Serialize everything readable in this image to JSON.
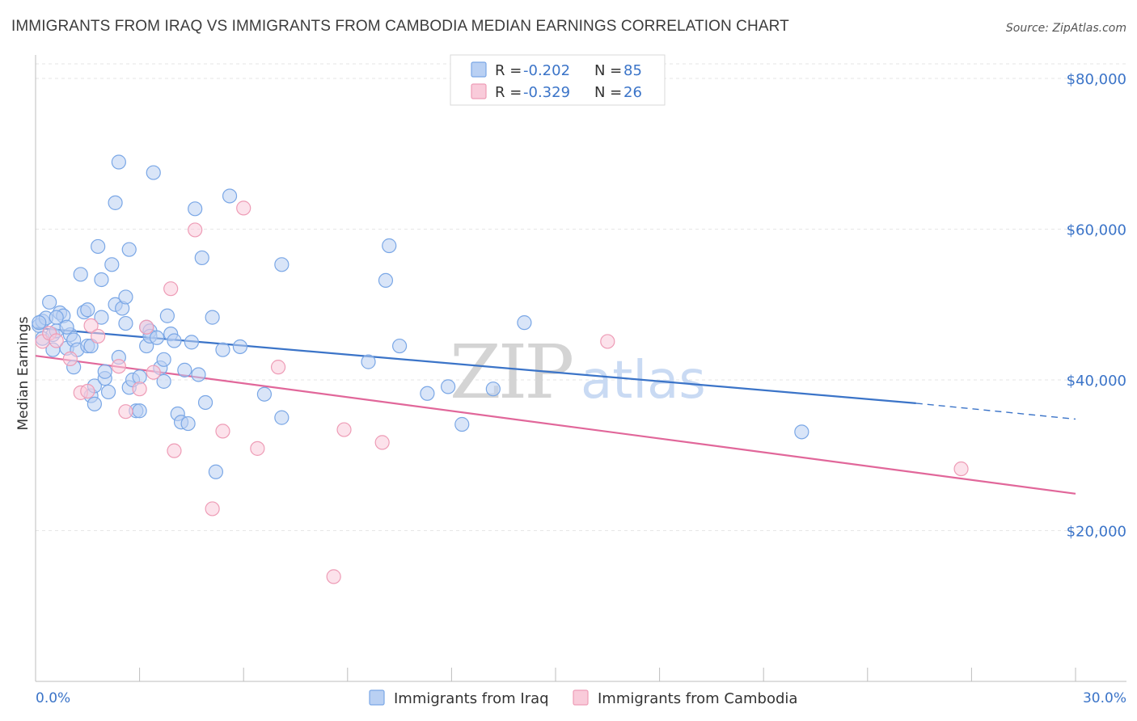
{
  "title": "IMMIGRANTS FROM IRAQ VS IMMIGRANTS FROM CAMBODIA MEDIAN EARNINGS CORRELATION CHART",
  "source": "Source: ZipAtlas.com",
  "watermark": {
    "zip": "ZIP",
    "atlas": "atlas"
  },
  "legend": {
    "r_label": "R = ",
    "n_label": "N = ",
    "rows": [
      {
        "r": "-0.202",
        "n": "85",
        "color": "#7aa7e6",
        "fill": "#b9d0f3"
      },
      {
        "r": "-0.329",
        "n": "26",
        "color": "#ee9cb6",
        "fill": "#f9cbda"
      }
    ]
  },
  "bottom_legend": [
    "Immigrants from Iraq",
    "Immigrants from Cambodia"
  ],
  "chart_data": {
    "type": "scatter",
    "title": "IMMIGRANTS FROM IRAQ VS IMMIGRANTS FROM CAMBODIA MEDIAN EARNINGS CORRELATION CHART",
    "xlabel": "",
    "ylabel": "Median Earnings",
    "xlim": [
      0,
      30
    ],
    "ylim": [
      0,
      82000
    ],
    "x_tick_labels": [
      "0.0%",
      "30.0%"
    ],
    "y_ticks": [
      20000,
      40000,
      60000,
      80000
    ],
    "y_tick_labels": [
      "$20,000",
      "$40,000",
      "$60,000",
      "$80,000"
    ],
    "grid": true,
    "legend_position": "top-center",
    "series": [
      {
        "name": "Immigrants from Iraq",
        "color": "#3b74c8",
        "marker_fill": "#b9d0f3",
        "marker_stroke": "#7aa7e6",
        "trend": {
          "x_start": 0,
          "y_start": 46900,
          "x_end": 25.4,
          "y_end": 36900,
          "dash_to_x": 30,
          "dash_to_y": 34800
        },
        "points": [
          [
            0.1,
            47200
          ],
          [
            0.2,
            47800
          ],
          [
            0.2,
            45500
          ],
          [
            0.3,
            48200
          ],
          [
            0.4,
            50300
          ],
          [
            0.5,
            46000
          ],
          [
            0.5,
            44000
          ],
          [
            0.6,
            46500
          ],
          [
            0.7,
            48900
          ],
          [
            0.8,
            48500
          ],
          [
            0.9,
            44200
          ],
          [
            1.0,
            46000
          ],
          [
            1.1,
            45300
          ],
          [
            1.1,
            41700
          ],
          [
            1.2,
            44000
          ],
          [
            1.3,
            54000
          ],
          [
            1.4,
            49000
          ],
          [
            1.5,
            49300
          ],
          [
            1.5,
            44500
          ],
          [
            1.6,
            44500
          ],
          [
            1.6,
            37900
          ],
          [
            1.7,
            36800
          ],
          [
            1.7,
            39200
          ],
          [
            1.8,
            57700
          ],
          [
            1.9,
            48300
          ],
          [
            1.9,
            53300
          ],
          [
            2.0,
            40200
          ],
          [
            2.0,
            41100
          ],
          [
            2.1,
            38400
          ],
          [
            2.2,
            55300
          ],
          [
            2.3,
            63500
          ],
          [
            2.3,
            50000
          ],
          [
            2.4,
            43000
          ],
          [
            2.4,
            68900
          ],
          [
            2.5,
            49500
          ],
          [
            2.6,
            51000
          ],
          [
            2.6,
            47500
          ],
          [
            2.7,
            39000
          ],
          [
            2.7,
            57300
          ],
          [
            2.8,
            40000
          ],
          [
            2.9,
            35900
          ],
          [
            3.0,
            35900
          ],
          [
            3.0,
            40400
          ],
          [
            3.2,
            47000
          ],
          [
            3.2,
            44500
          ],
          [
            3.3,
            46500
          ],
          [
            3.3,
            45800
          ],
          [
            3.4,
            67500
          ],
          [
            3.5,
            45600
          ],
          [
            3.6,
            41600
          ],
          [
            3.7,
            42700
          ],
          [
            3.7,
            39800
          ],
          [
            3.8,
            48500
          ],
          [
            3.9,
            46100
          ],
          [
            4.0,
            45200
          ],
          [
            4.1,
            35500
          ],
          [
            4.2,
            34400
          ],
          [
            4.3,
            41300
          ],
          [
            4.4,
            34200
          ],
          [
            4.5,
            45000
          ],
          [
            4.6,
            62700
          ],
          [
            4.7,
            40700
          ],
          [
            4.8,
            56200
          ],
          [
            4.9,
            37000
          ],
          [
            5.1,
            48300
          ],
          [
            5.2,
            27800
          ],
          [
            5.4,
            44000
          ],
          [
            5.6,
            64400
          ],
          [
            5.9,
            44400
          ],
          [
            6.6,
            38100
          ],
          [
            7.1,
            55300
          ],
          [
            7.1,
            35000
          ],
          [
            9.6,
            42400
          ],
          [
            10.1,
            53200
          ],
          [
            10.2,
            57800
          ],
          [
            10.5,
            44500
          ],
          [
            11.3,
            38200
          ],
          [
            11.9,
            39100
          ],
          [
            12.3,
            34100
          ],
          [
            13.2,
            38800
          ],
          [
            14.1,
            47600
          ],
          [
            22.1,
            33100
          ],
          [
            0.1,
            47600
          ],
          [
            0.6,
            48300
          ],
          [
            0.9,
            47000
          ]
        ]
      },
      {
        "name": "Immigrants from Cambodia",
        "color": "#e1679a",
        "marker_fill": "#f9cbda",
        "marker_stroke": "#ee9cb6",
        "trend": {
          "x_start": 0,
          "y_start": 43200,
          "x_end": 30,
          "y_end": 24900
        },
        "points": [
          [
            0.2,
            45100
          ],
          [
            0.4,
            46200
          ],
          [
            0.6,
            45200
          ],
          [
            1.0,
            42800
          ],
          [
            1.3,
            38300
          ],
          [
            1.5,
            38500
          ],
          [
            1.6,
            47200
          ],
          [
            1.8,
            45800
          ],
          [
            2.4,
            41800
          ],
          [
            2.6,
            35800
          ],
          [
            3.0,
            38800
          ],
          [
            3.2,
            47000
          ],
          [
            3.4,
            41000
          ],
          [
            3.9,
            52100
          ],
          [
            4.0,
            30600
          ],
          [
            4.6,
            59900
          ],
          [
            5.1,
            22900
          ],
          [
            5.4,
            33200
          ],
          [
            6.0,
            62800
          ],
          [
            6.4,
            30900
          ],
          [
            7.0,
            41700
          ],
          [
            8.6,
            13900
          ],
          [
            8.9,
            33400
          ],
          [
            10.0,
            31700
          ],
          [
            16.5,
            45100
          ],
          [
            26.7,
            28200
          ]
        ]
      }
    ]
  }
}
